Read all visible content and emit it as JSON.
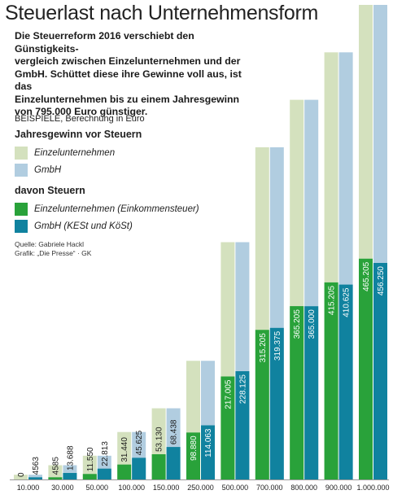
{
  "header": {
    "title": "Steuerlast nach Unternehmensform",
    "subtitle_lines": [
      "Die Steuerreform 2016 verschiebt den Günstigkeits-",
      "vergleich zwischen Einzelunternehmen und der",
      "GmbH. Schüttet diese ihre Gewinne voll aus, ist das",
      "Einzelunternehmen bis zu einem Jahresgewinn",
      "von 795.000 Euro günstiger."
    ]
  },
  "legend": {
    "beispiele": "BEISPIELE, Berechnung in Euro",
    "group1_title": "Jahresgewinn vor Steuern",
    "group1_items": [
      "Einzelunternehmen",
      "GmbH"
    ],
    "group2_title": "davon Steuern",
    "group2_items": [
      "Einzelunternehmen (Einkommensteuer)",
      "GmbH (KESt und KöSt)"
    ]
  },
  "source": {
    "line1": "Quelle: Gabriele Hackl",
    "line2": "Grafik: „Die Presse“ · GK"
  },
  "colors": {
    "ez_gewinn": "#d4e1be",
    "gmbh_gewinn": "#b1cde0",
    "ez_steuer": "#29a23a",
    "gmbh_steuer": "#10829f"
  },
  "chart_data": {
    "type": "bar",
    "title": "Steuerlast nach Unternehmensform",
    "categories": [
      "10.000",
      "30.000",
      "50.000",
      "100.000",
      "150.000",
      "250.000",
      "500.000",
      "700.000",
      "800.000",
      "900.000",
      "1.000.000"
    ],
    "profits": [
      10000,
      30000,
      50000,
      100000,
      150000,
      250000,
      500000,
      700000,
      800000,
      900000,
      1000000
    ],
    "series": [
      {
        "name": "Einzelunternehmen (Einkommensteuer)",
        "values": [
          0,
          4585,
          11550,
          31440,
          53130,
          98880,
          217005,
          315205,
          365205,
          415205,
          465205
        ]
      },
      {
        "name": "GmbH (KESt und KöSt)",
        "values": [
          4563,
          13688,
          22813,
          45625,
          68438,
          114063,
          228125,
          319375,
          365000,
          410625,
          456250
        ]
      }
    ],
    "labels": {
      "ez": [
        "0",
        "4585",
        "11.550",
        "31.440",
        "53.130",
        "98.880",
        "217.005",
        "315.205",
        "365.205",
        "415.205",
        "465.205"
      ],
      "gmbh": [
        "4563",
        "13.688",
        "22.813",
        "45.625",
        "68.438",
        "114.063",
        "228.125",
        "319.375",
        "365.000",
        "410.625",
        "456.250"
      ]
    }
  }
}
